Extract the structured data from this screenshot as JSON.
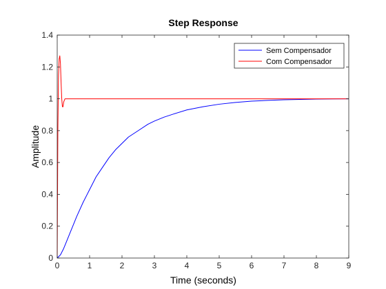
{
  "chart_data": {
    "type": "line",
    "title": "Step Response",
    "xlabel": "Time (seconds)",
    "ylabel": "Amplitude",
    "xlim": [
      0,
      9
    ],
    "ylim": [
      0,
      1.4
    ],
    "xticks": [
      0,
      1,
      2,
      3,
      4,
      5,
      6,
      7,
      8,
      9
    ],
    "yticks": [
      0,
      0.2,
      0.4,
      0.6,
      0.8,
      1,
      1.2,
      1.4
    ],
    "xtick_labels": [
      "0",
      "1",
      "2",
      "3",
      "4",
      "5",
      "6",
      "7",
      "8",
      "9"
    ],
    "ytick_labels": [
      "0",
      "0.2",
      "0.4",
      "0.6",
      "0.8",
      "1",
      "1.2",
      "1.4"
    ],
    "grid": false,
    "legend_position": "top-right",
    "series": [
      {
        "name": "Sem Compensador",
        "color": "#0000ff",
        "x": [
          0,
          0.1,
          0.2,
          0.3,
          0.4,
          0.5,
          0.6,
          0.8,
          1.0,
          1.2,
          1.4,
          1.6,
          1.8,
          2.0,
          2.2,
          2.5,
          2.8,
          3.0,
          3.3,
          3.6,
          4.0,
          4.5,
          5.0,
          5.5,
          6.0,
          6.5,
          7.0,
          7.5,
          8.0,
          8.5,
          9.0
        ],
        "y": [
          0,
          0.02,
          0.06,
          0.11,
          0.16,
          0.21,
          0.26,
          0.35,
          0.43,
          0.51,
          0.57,
          0.63,
          0.68,
          0.72,
          0.76,
          0.8,
          0.84,
          0.86,
          0.885,
          0.905,
          0.93,
          0.95,
          0.966,
          0.977,
          0.985,
          0.99,
          0.994,
          0.996,
          0.998,
          0.999,
          1.0
        ]
      },
      {
        "name": "Com Compensador",
        "color": "#ff0000",
        "x": [
          0,
          0.02,
          0.04,
          0.06,
          0.08,
          0.1,
          0.12,
          0.14,
          0.16,
          0.18,
          0.2,
          0.24,
          0.3,
          0.4,
          0.6,
          1.0,
          2.0,
          4.0,
          6.0,
          9.0
        ],
        "y": [
          0,
          0.8,
          1.15,
          1.25,
          1.27,
          1.22,
          1.1,
          1.0,
          0.95,
          0.95,
          0.98,
          1.0,
          1.0,
          1.0,
          1.0,
          1.0,
          1.0,
          1.0,
          1.0,
          1.0
        ]
      }
    ]
  }
}
